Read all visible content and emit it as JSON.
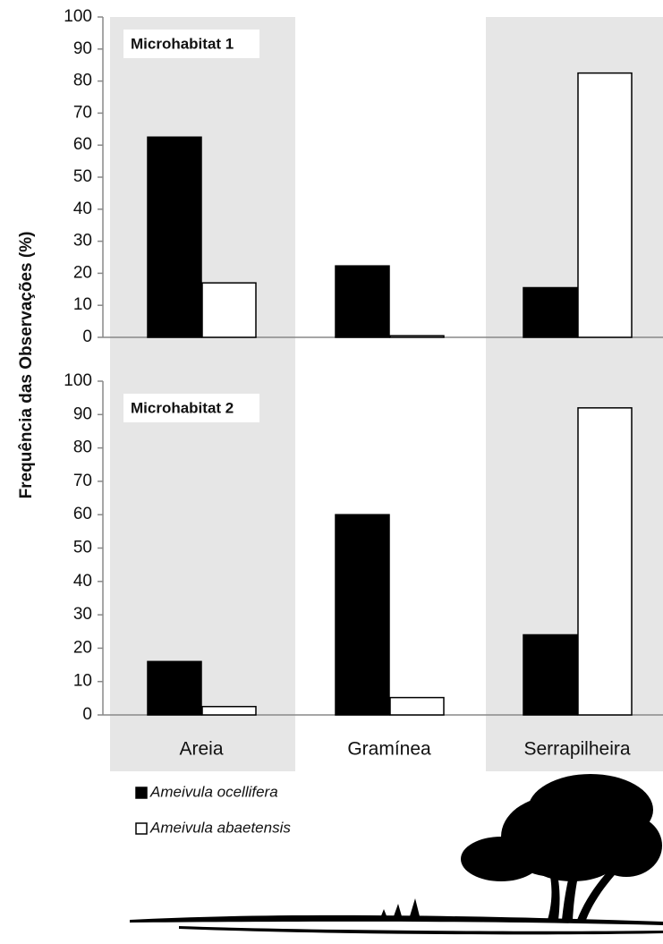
{
  "chart_data": [
    {
      "type": "bar",
      "title": "Microhabitat 1",
      "ylabel": "Frequência das Observações (%)",
      "series": [
        {
          "color": "#000000",
          "values": [
            62.5,
            22.3,
            15.5
          ]
        },
        {
          "color": "#ffffff",
          "values": [
            17,
            0.5,
            82.5
          ]
        }
      ],
      "ylim": [
        0,
        100
      ],
      "yticks": [
        0,
        10,
        20,
        30,
        40,
        50,
        60,
        70,
        80,
        90,
        100
      ]
    },
    {
      "type": "bar",
      "title": "Microhabitat 2",
      "categories": [
        "Areia",
        "Gramínea",
        "Serrapilheira"
      ],
      "series": [
        {
          "name": "Ameivula ocellifera",
          "color": "#000000",
          "values": [
            16,
            60,
            24
          ]
        },
        {
          "name": "Ameivula abaetensis",
          "color": "#ffffff",
          "values": [
            2.5,
            5.2,
            92
          ]
        }
      ],
      "ylim": [
        0,
        100
      ],
      "yticks": [
        0,
        10,
        20,
        30,
        40,
        50,
        60,
        70,
        80,
        90,
        100
      ]
    }
  ]
}
